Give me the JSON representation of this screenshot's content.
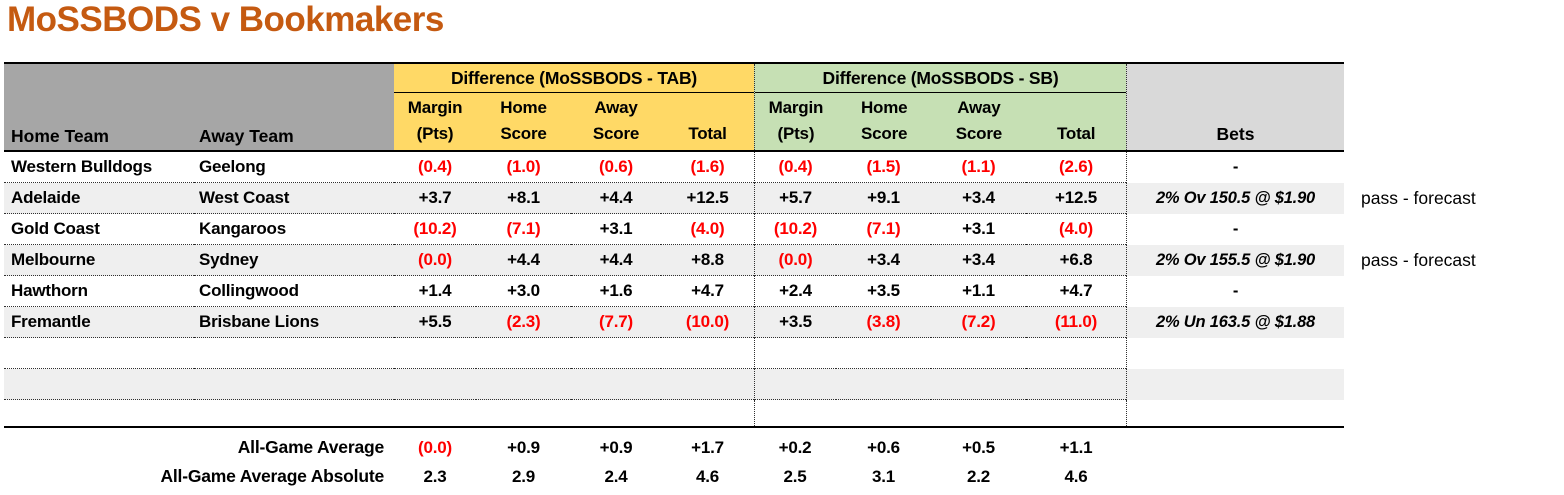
{
  "title": "MoSSBODS v Bookmakers",
  "colors": {
    "title_orange": "#C55A11",
    "tab_group_fill": "#FFD966",
    "sb_group_fill": "#C6E0B4",
    "left_header_fill": "#A6A6A6",
    "bets_header_fill": "#D9D9D9",
    "alt_row_fill": "#EFEFEF",
    "negative_value": "#FF0000"
  },
  "header": {
    "home_team": "Home Team",
    "away_team": "Away Team",
    "tab_group": "Difference (MoSSBODS - TAB)",
    "sb_group": "Difference (MoSSBODS - SB)",
    "sub_columns": [
      {
        "line1": "Margin",
        "line2": "(Pts)"
      },
      {
        "line1": "Home",
        "line2": "Score"
      },
      {
        "line1": "Away",
        "line2": "Score"
      },
      {
        "line1": "",
        "line2": "Total"
      }
    ],
    "bets": "Bets"
  },
  "rows": [
    {
      "home": "Western Bulldogs",
      "away": "Geelong",
      "tab": [
        "(0.4)",
        "(1.0)",
        "(0.6)",
        "(1.6)"
      ],
      "sb": [
        "(0.4)",
        "(1.5)",
        "(1.1)",
        "(2.6)"
      ],
      "bet": "-",
      "note": ""
    },
    {
      "home": "Adelaide",
      "away": "West Coast",
      "tab": [
        "+3.7",
        "+8.1",
        "+4.4",
        "+12.5"
      ],
      "sb": [
        "+5.7",
        "+9.1",
        "+3.4",
        "+12.5"
      ],
      "bet": "2% Ov 150.5 @ $1.90",
      "note": "pass - forecast"
    },
    {
      "home": "Gold Coast",
      "away": "Kangaroos",
      "tab": [
        "(10.2)",
        "(7.1)",
        "+3.1",
        "(4.0)"
      ],
      "sb": [
        "(10.2)",
        "(7.1)",
        "+3.1",
        "(4.0)"
      ],
      "bet": "-",
      "note": ""
    },
    {
      "home": "Melbourne",
      "away": "Sydney",
      "tab": [
        "(0.0)",
        "+4.4",
        "+4.4",
        "+8.8"
      ],
      "sb": [
        "(0.0)",
        "+3.4",
        "+3.4",
        "+6.8"
      ],
      "bet": "2% Ov 155.5 @ $1.90",
      "note": "pass - forecast"
    },
    {
      "home": "Hawthorn",
      "away": "Collingwood",
      "tab": [
        "+1.4",
        "+3.0",
        "+1.6",
        "+4.7"
      ],
      "sb": [
        "+2.4",
        "+3.5",
        "+1.1",
        "+4.7"
      ],
      "bet": "-",
      "note": ""
    },
    {
      "home": "Fremantle",
      "away": "Brisbane Lions",
      "tab": [
        "+5.5",
        "(2.3)",
        "(7.7)",
        "(10.0)"
      ],
      "sb": [
        "+3.5",
        "(3.8)",
        "(7.2)",
        "(11.0)"
      ],
      "bet": "2% Un 163.5 @ $1.88",
      "note": ""
    },
    {
      "home": "",
      "away": "",
      "tab": [
        "",
        "",
        "",
        ""
      ],
      "sb": [
        "",
        "",
        "",
        ""
      ],
      "bet": "",
      "note": ""
    },
    {
      "home": "",
      "away": "",
      "tab": [
        "",
        "",
        "",
        ""
      ],
      "sb": [
        "",
        "",
        "",
        ""
      ],
      "bet": "",
      "note": ""
    },
    {
      "home": "",
      "away": "",
      "tab": [
        "",
        "",
        "",
        ""
      ],
      "sb": [
        "",
        "",
        "",
        ""
      ],
      "bet": "",
      "note": ""
    }
  ],
  "summary": [
    {
      "label": "All-Game Average",
      "tab": [
        "(0.0)",
        "+0.9",
        "+0.9",
        "+1.7"
      ],
      "sb": [
        "+0.2",
        "+0.6",
        "+0.5",
        "+1.1"
      ]
    },
    {
      "label": "All-Game Average Absolute",
      "tab": [
        "2.3",
        "2.9",
        "2.4",
        "4.6"
      ],
      "sb": [
        "2.5",
        "3.1",
        "2.2",
        "4.6"
      ]
    }
  ]
}
